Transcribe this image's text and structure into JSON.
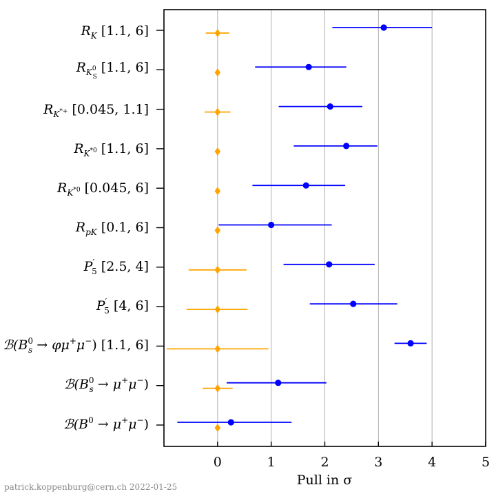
{
  "chart_data": {
    "type": "scatter",
    "xlabel": "Pull in σ",
    "xlim": [
      -1,
      5
    ],
    "xticks": [
      "0",
      "1",
      "2",
      "3",
      "4",
      "5"
    ],
    "grid": "vertical",
    "footer": "patrick.koppenburg@cern.ch 2022-01-25",
    "categories": [
      "R_K [1.1, 6]",
      "R_K0S [1.1, 6]",
      "R_K*+ [0.045, 1.1]",
      "R_K*0 [1.1, 6]",
      "R_K*0 [0.045, 6]",
      "R_pK [0.1, 6]",
      "P5' [2.5, 4]",
      "P5' [4, 6]",
      "B(Bs0 → φμ+μ−) [1.1, 6]",
      "B(Bs0 → μ+μ−)",
      "B(B0 → μ+μ−)"
    ],
    "series": [
      {
        "color": "#ffa500",
        "marker": "diamond",
        "points": [
          {
            "x": 0,
            "lo": -0.22,
            "hi": 0.22
          },
          {
            "x": 0,
            "lo": 0,
            "hi": 0
          },
          {
            "x": 0,
            "lo": -0.24,
            "hi": 0.24
          },
          {
            "x": 0,
            "lo": -0.05,
            "hi": 0.05
          },
          {
            "x": 0,
            "lo": 0,
            "hi": 0
          },
          {
            "x": 0,
            "lo": -0.05,
            "hi": 0.05
          },
          {
            "x": 0,
            "lo": -0.54,
            "hi": 0.54
          },
          {
            "x": 0,
            "lo": -0.58,
            "hi": 0.56
          },
          {
            "x": 0,
            "lo": -0.95,
            "hi": 0.95
          },
          {
            "x": 0,
            "lo": -0.28,
            "hi": 0.28
          },
          {
            "x": 0,
            "lo": -0.05,
            "hi": 0.05
          }
        ]
      },
      {
        "color": "#0000ff",
        "marker": "circle",
        "points": [
          {
            "x": 3.1,
            "lo": 2.14,
            "hi": 4.0
          },
          {
            "x": 1.7,
            "lo": 0.7,
            "hi": 2.4
          },
          {
            "x": 2.1,
            "lo": 1.14,
            "hi": 2.7
          },
          {
            "x": 2.4,
            "lo": 1.42,
            "hi": 2.98
          },
          {
            "x": 1.65,
            "lo": 0.65,
            "hi": 2.38
          },
          {
            "x": 1.0,
            "lo": 0.02,
            "hi": 2.13
          },
          {
            "x": 2.08,
            "lo": 1.23,
            "hi": 2.93
          },
          {
            "x": 2.53,
            "lo": 1.72,
            "hi": 3.35
          },
          {
            "x": 3.6,
            "lo": 3.3,
            "hi": 3.9
          },
          {
            "x": 1.13,
            "lo": 0.17,
            "hi": 2.03
          },
          {
            "x": 0.25,
            "lo": -0.75,
            "hi": 1.38
          }
        ]
      }
    ]
  }
}
